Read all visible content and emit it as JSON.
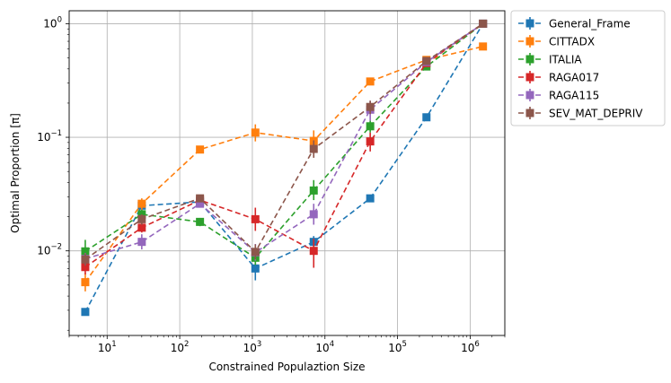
{
  "chart_data": {
    "type": "line",
    "title": "",
    "xlabel": "Constrained Populaztion Size",
    "ylabel": "Optimal Proportion [π]",
    "xscale": "log",
    "yscale": "log",
    "xlim": [
      3,
      3000000
    ],
    "ylim": [
      0.0018,
      1.3
    ],
    "grid": true,
    "legend_position": "upper-right-outside",
    "x_ticks": [
      {
        "value": 10,
        "base": "10",
        "exp": "1"
      },
      {
        "value": 100,
        "base": "10",
        "exp": "2"
      },
      {
        "value": 1000,
        "base": "10",
        "exp": "3"
      },
      {
        "value": 10000,
        "base": "10",
        "exp": "4"
      },
      {
        "value": 100000,
        "base": "10",
        "exp": "5"
      },
      {
        "value": 1000000,
        "base": "10",
        "exp": "6"
      }
    ],
    "y_ticks": [
      {
        "value": 0.01,
        "base": "10",
        "exp": "−2"
      },
      {
        "value": 0.1,
        "base": "10",
        "exp": "−1"
      },
      {
        "value": 1,
        "base": "10",
        "exp": "0"
      }
    ],
    "x": [
      5,
      30,
      190,
      1100,
      7000,
      42000,
      250000,
      1500000
    ],
    "series": [
      {
        "name": "General_Frame",
        "color": "#1f77b4",
        "values": [
          0.0029,
          0.025,
          0.027,
          0.007,
          0.012,
          0.029,
          0.15,
          1.0
        ],
        "err_low": [
          0.0027,
          0.023,
          0.025,
          0.0055,
          0.0105,
          0.027,
          0.145,
          0.98
        ],
        "err_high": [
          0.0031,
          0.027,
          0.029,
          0.0085,
          0.0135,
          0.031,
          0.155,
          1.02
        ]
      },
      {
        "name": "CITTADX",
        "color": "#ff7f0e",
        "values": [
          0.0053,
          0.026,
          0.078,
          0.11,
          0.093,
          0.31,
          0.48,
          0.63
        ],
        "err_low": [
          0.0044,
          0.023,
          0.074,
          0.092,
          0.075,
          0.29,
          0.46,
          0.61
        ],
        "err_high": [
          0.0064,
          0.029,
          0.082,
          0.13,
          0.115,
          0.33,
          0.5,
          0.65
        ]
      },
      {
        "name": "ITALIA",
        "color": "#2ca02c",
        "values": [
          0.0099,
          0.021,
          0.018,
          0.0087,
          0.034,
          0.125,
          0.42,
          1.0
        ],
        "err_low": [
          0.0078,
          0.019,
          0.0165,
          0.0075,
          0.028,
          0.11,
          0.4,
          0.98
        ],
        "err_high": [
          0.0125,
          0.023,
          0.0195,
          0.0099,
          0.042,
          0.14,
          0.44,
          1.02
        ]
      },
      {
        "name": "RAGA017",
        "color": "#d62728",
        "values": [
          0.0072,
          0.016,
          0.028,
          0.019,
          0.01,
          0.092,
          0.45,
          1.0
        ],
        "err_low": [
          0.0062,
          0.0145,
          0.026,
          0.015,
          0.0071,
          0.075,
          0.43,
          0.98
        ],
        "err_high": [
          0.0084,
          0.0178,
          0.03,
          0.024,
          0.0128,
          0.11,
          0.47,
          1.02
        ]
      },
      {
        "name": "RAGA115",
        "color": "#9467bd",
        "values": [
          0.0085,
          0.012,
          0.026,
          0.0097,
          0.021,
          0.175,
          0.46,
          1.0
        ],
        "err_low": [
          0.0075,
          0.0103,
          0.024,
          0.0082,
          0.017,
          0.14,
          0.44,
          0.98
        ],
        "err_high": [
          0.0096,
          0.014,
          0.028,
          0.0115,
          0.026,
          0.21,
          0.48,
          1.02
        ]
      },
      {
        "name": "SEV_MAT_DEPRIV",
        "color": "#8c564b",
        "values": [
          0.0084,
          0.019,
          0.029,
          0.0098,
          0.079,
          0.185,
          0.47,
          1.0
        ],
        "err_low": [
          0.0074,
          0.017,
          0.027,
          0.0084,
          0.066,
          0.16,
          0.45,
          0.98
        ],
        "err_high": [
          0.0095,
          0.021,
          0.031,
          0.0114,
          0.094,
          0.21,
          0.49,
          1.02
        ]
      }
    ]
  }
}
